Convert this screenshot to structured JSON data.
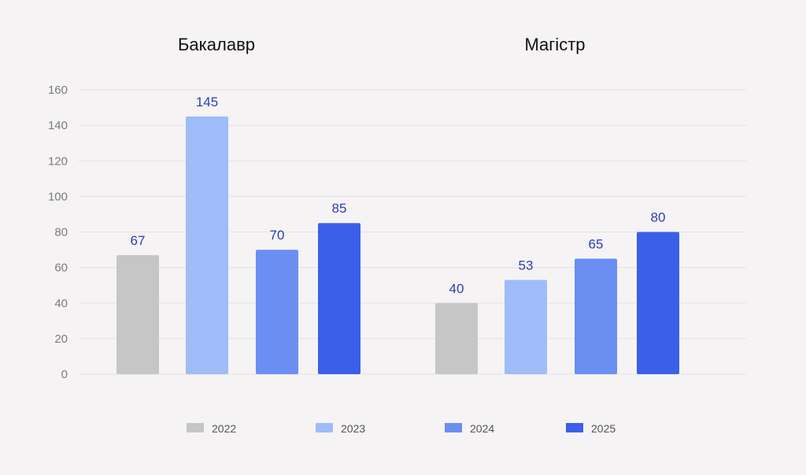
{
  "chart_data": {
    "type": "bar",
    "groups": [
      "Бакалавр",
      "Магістр"
    ],
    "series": [
      {
        "name": "2022",
        "color": "#c6c6c6",
        "values": [
          67,
          40
        ]
      },
      {
        "name": "2023",
        "color": "#9ebcf8",
        "values": [
          145,
          53
        ]
      },
      {
        "name": "2024",
        "color": "#6b8ef2",
        "values": [
          70,
          65
        ]
      },
      {
        "name": "2025",
        "color": "#3b5fe8",
        "values": [
          85,
          80
        ]
      }
    ],
    "y_ticks": [
      "0",
      "20",
      "40",
      "60",
      "80",
      "100",
      "120",
      "140",
      "160"
    ],
    "ylim": [
      0,
      160
    ],
    "grid": true,
    "legend_position": "bottom"
  }
}
